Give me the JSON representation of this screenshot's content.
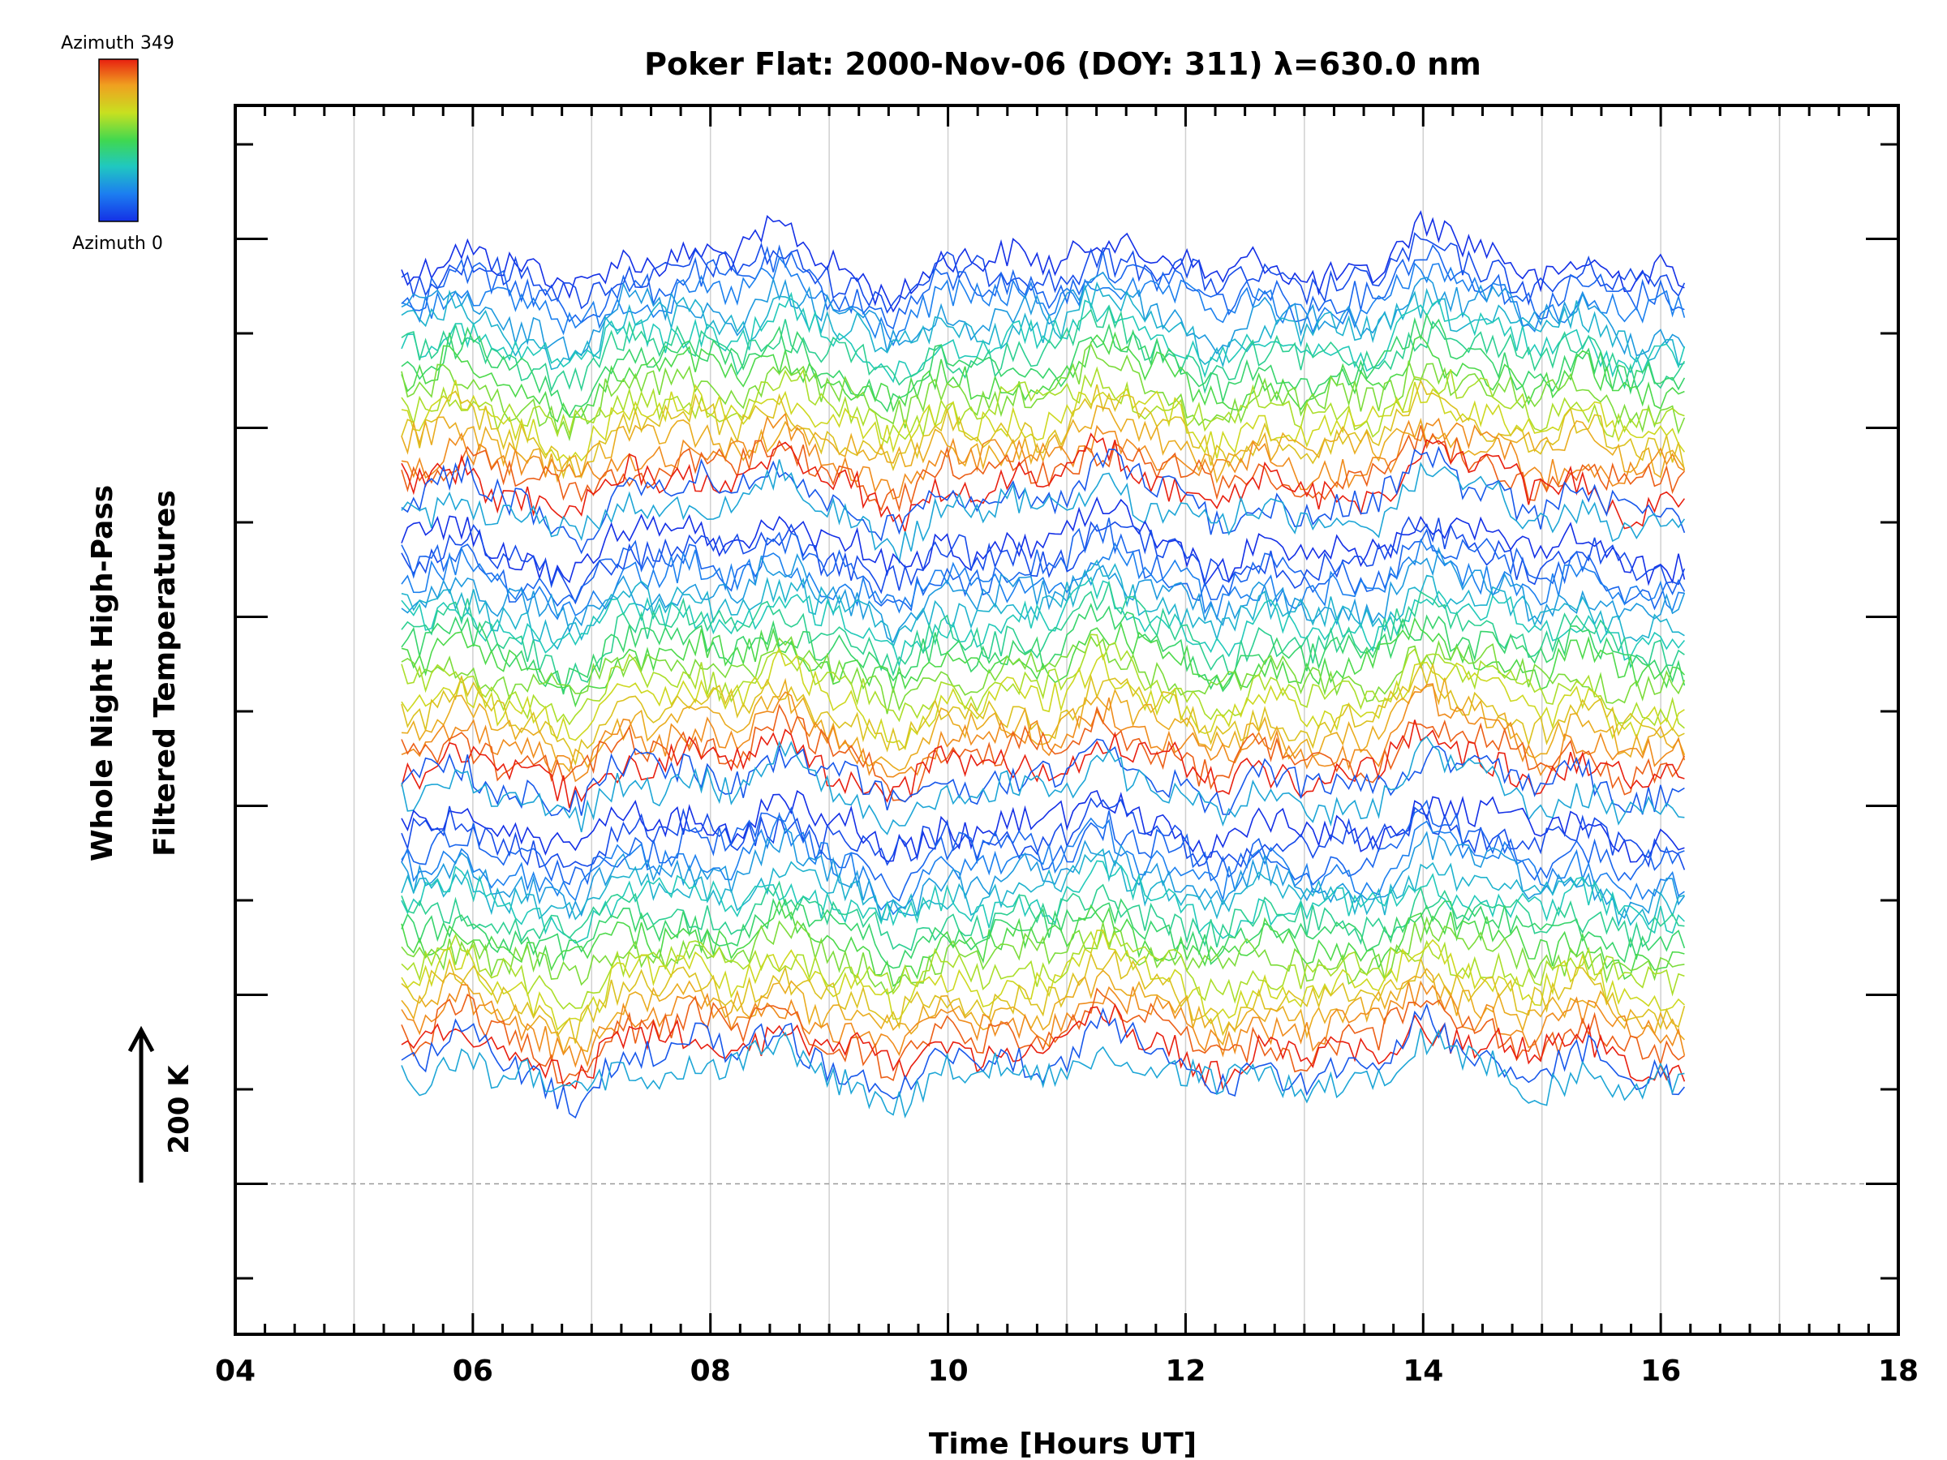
{
  "chart_data": {
    "type": "line",
    "title": "Poker Flat: 2000-Nov-06 (DOY: 311) λ=630.0 nm",
    "xlabel": "Time [Hours UT]",
    "ylabel_lines": [
      "Whole Night High-Pass",
      "Filtered Temperatures"
    ],
    "xlim": [
      4,
      18
    ],
    "x_ticks": [
      "04",
      "06",
      "08",
      "10",
      "12",
      "14",
      "16",
      "18"
    ],
    "x_minor_step": 0.25,
    "x_grid_step": 1,
    "y_ticks_count": 13,
    "data_time_range": [
      5.4,
      16.2
    ],
    "series_count": 60,
    "series_color_scale": "rainbow, azimuth 0 (blue) to 349 (red)",
    "azimuth_order_per_band": [
      0,
      20,
      40,
      60,
      80,
      100,
      120,
      140,
      160,
      180,
      200,
      220,
      240,
      260,
      280,
      300,
      320,
      349,
      30,
      90
    ],
    "scale_bar": {
      "value_label": "200 K",
      "direction": "up"
    },
    "colorbar": {
      "top_label": "Azimuth 349",
      "bottom_label": "Azimuth 0",
      "colors": [
        "#1430e6",
        "#1c7ef0",
        "#20c8c0",
        "#40d850",
        "#c8e020",
        "#f0a020",
        "#e82010"
      ]
    },
    "baseline": "dashed gray",
    "grid": true
  }
}
